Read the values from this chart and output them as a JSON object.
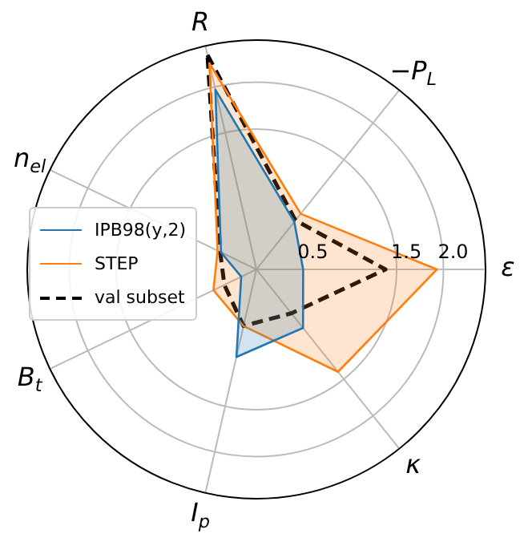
{
  "chart_data": {
    "type": "radar",
    "categories": [
      "R",
      "−P$_{L}$",
      "ε",
      "κ",
      "I$_{p}$",
      "B$_{t}$",
      "n$_{el}$"
    ],
    "series": [
      {
        "name": "IPB98(y,2)",
        "color": "#1f77b4",
        "values": [
          1.97,
          0.65,
          0.5,
          0.8,
          0.96,
          0.18,
          0.42
        ]
      },
      {
        "name": "STEP",
        "color": "#ff7f0e",
        "values": [
          2.26,
          0.76,
          1.93,
          1.4,
          0.62,
          0.51,
          0.46
        ]
      },
      {
        "name": "val subset",
        "color": "#000000",
        "values": [
          2.35,
          0.67,
          1.38,
          0.6,
          0.62,
          0.38,
          0.43
        ],
        "line_style": "dashed"
      }
    ],
    "ylim": [
      0,
      2.45
    ],
    "yticks": [
      0.5,
      1.5,
      {
        "value": 2,
        "label": "2.0"
      }
    ],
    "grid": true,
    "legend": "left"
  }
}
